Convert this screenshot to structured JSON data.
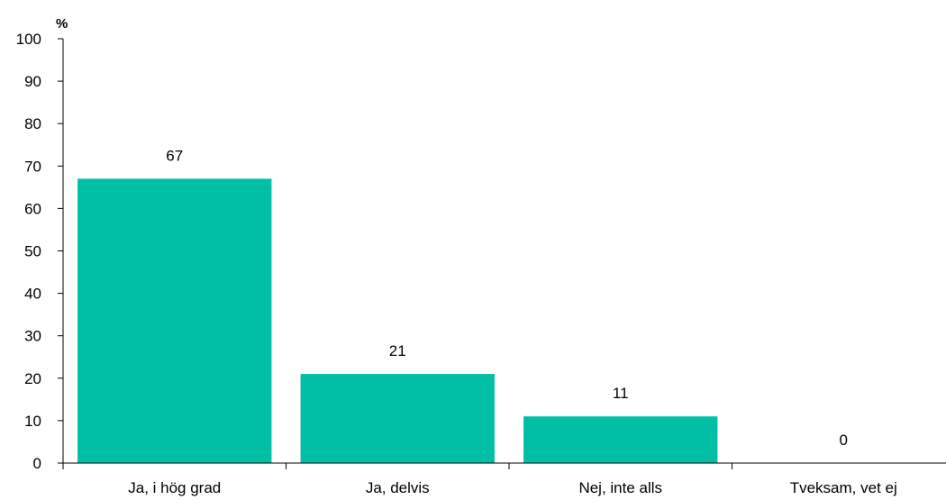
{
  "chart_data": {
    "type": "bar",
    "categories": [
      "Ja, i hög grad",
      "Ja, delvis",
      "Nej, inte alls",
      "Tveksam, vet ej"
    ],
    "values": [
      67,
      21,
      11,
      0
    ],
    "data_labels": [
      "67",
      "21",
      "11",
      "0"
    ],
    "y_unit": "%",
    "ylim": [
      0,
      100
    ],
    "y_ticks": [
      "0",
      "10",
      "20",
      "30",
      "40",
      "50",
      "60",
      "70",
      "80",
      "90",
      "100"
    ],
    "grid": false,
    "legend": "none",
    "bar_color": "#00BFA5"
  }
}
